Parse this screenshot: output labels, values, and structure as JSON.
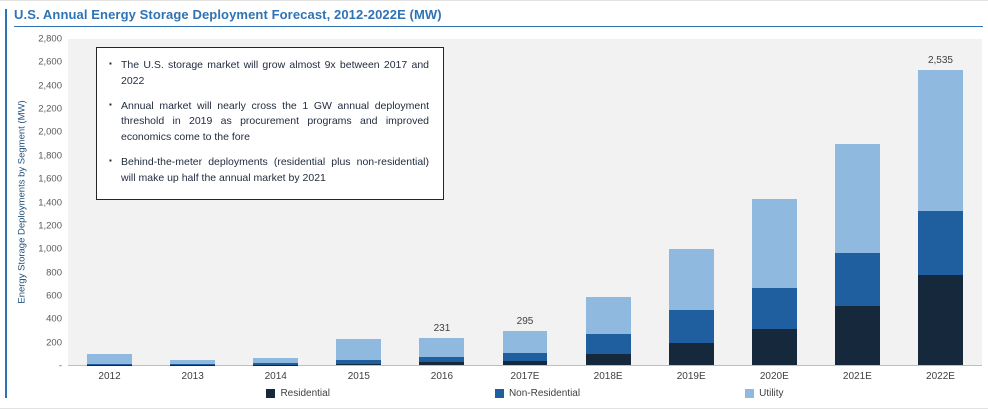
{
  "page": {
    "title": "U.S. Annual Energy Storage Deployment Forecast, 2012-2022E (MW)"
  },
  "annotation_box": {
    "bullets": [
      "The U.S. storage market will grow almost 9x between 2017 and 2022",
      "Annual market will nearly cross the 1 GW annual deployment threshold in 2019 as procurement programs and improved economics come to the fore",
      "Behind-the-meter deployments (residential plus non-residential) will make up half the annual market by 2021"
    ]
  },
  "chart_data": {
    "type": "bar",
    "stacked": true,
    "title": "U.S. Annual Energy Storage Deployment Forecast, 2012-2022E (MW)",
    "ylabel": "Energy Storage Deployments by Segment (MW)",
    "xlabel": "",
    "ylim": [
      0,
      2800
    ],
    "grid": false,
    "legend_position": "bottom",
    "ytick_labels": [
      "2,800",
      "2,600",
      "2,400",
      "2,200",
      "2,000",
      "1,800",
      "1,600",
      "1,400",
      "1,200",
      "1,000",
      "800",
      "600",
      "400",
      "200",
      "-"
    ],
    "categories": [
      "2012",
      "2013",
      "2014",
      "2015",
      "2016",
      "2017E",
      "2018E",
      "2019E",
      "2020E",
      "2021E",
      "2022E"
    ],
    "series": [
      {
        "name": "Residential",
        "color": "#16283C",
        "values": [
          2,
          2,
          3,
          6,
          25,
          35,
          95,
          190,
          310,
          510,
          775
        ]
      },
      {
        "name": "Non-Residential",
        "color": "#1F5FA0",
        "values": [
          10,
          8,
          14,
          35,
          45,
          70,
          170,
          285,
          355,
          450,
          550
        ]
      },
      {
        "name": "Utility",
        "color": "#8FB9DE",
        "values": [
          83,
          35,
          45,
          184,
          161,
          190,
          315,
          525,
          765,
          940,
          1210
        ]
      }
    ],
    "data_labels": [
      null,
      null,
      null,
      null,
      "231",
      "295",
      null,
      null,
      null,
      null,
      "2,535"
    ],
    "totals": [
      95,
      45,
      62,
      225,
      231,
      295,
      580,
      1000,
      1430,
      1900,
      2535
    ]
  },
  "colors": {
    "title": "#2E74B5",
    "plot_background": "#F2F2F2",
    "axis_text": "#404040",
    "residential": "#16283C",
    "non_residential": "#1F5FA0",
    "utility": "#8FB9DE"
  }
}
